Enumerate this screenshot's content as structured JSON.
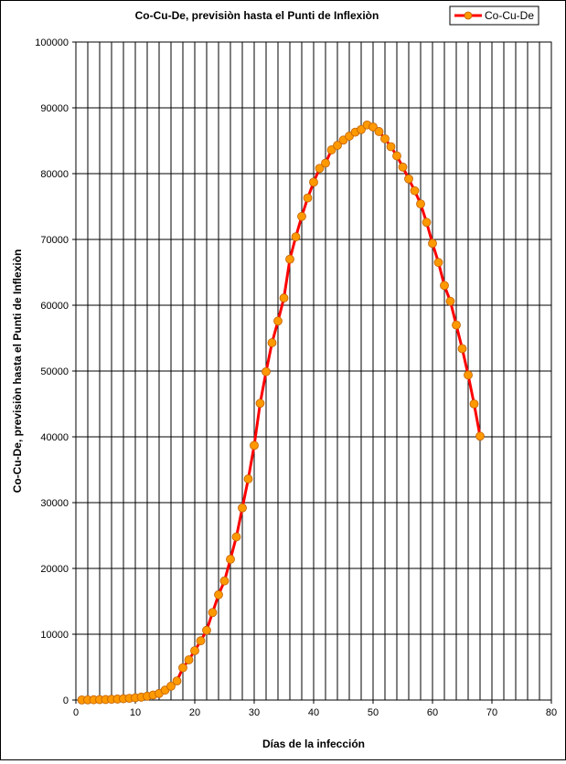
{
  "chart_data": {
    "type": "line",
    "title": "Co-Cu-De, previsiòn hasta el Punti de Inflexiòn",
    "xlabel": "Días de la infección",
    "ylabel": "Co-Cu-De, previsiòn hasta el Punti de Inflexiòn",
    "xlim": [
      0,
      80
    ],
    "ylim": [
      0,
      100000
    ],
    "x_ticks": [
      "0",
      "10",
      "20",
      "30",
      "40",
      "50",
      "60",
      "70",
      "80"
    ],
    "y_ticks": [
      "0",
      "10000",
      "20000",
      "30000",
      "40000",
      "50000",
      "60000",
      "70000",
      "80000",
      "90000",
      "100000"
    ],
    "grid": true,
    "legend_position": "top-right",
    "series": [
      {
        "name": "Co-Cu-De",
        "line_color": "#ff0000",
        "marker_color": "#ff9900",
        "x": [
          1,
          2,
          3,
          4,
          5,
          6,
          7,
          8,
          9,
          10,
          11,
          12,
          13,
          14,
          15,
          16,
          17,
          18,
          19,
          20,
          21,
          22,
          23,
          24,
          25,
          26,
          27,
          28,
          29,
          30,
          31,
          32,
          33,
          34,
          35,
          36,
          37,
          38,
          39,
          40,
          41,
          42,
          43,
          44,
          45,
          46,
          47,
          48,
          49,
          50,
          51,
          52,
          53,
          54,
          55,
          56,
          57,
          58,
          59,
          60,
          61,
          62,
          63,
          64,
          65,
          66,
          67,
          68
        ],
        "values": [
          20,
          30,
          40,
          60,
          80,
          110,
          150,
          200,
          260,
          340,
          440,
          580,
          760,
          1000,
          1500,
          2100,
          2900,
          4900,
          6100,
          7500,
          9000,
          10600,
          13300,
          16000,
          18100,
          21400,
          24800,
          29200,
          33600,
          38700,
          45100,
          49900,
          54300,
          57600,
          61100,
          67000,
          70400,
          73500,
          76300,
          78700,
          80800,
          81600,
          83600,
          84300,
          85100,
          85700,
          86300,
          86700,
          87400,
          87100,
          86400,
          85300,
          84100,
          82700,
          81000,
          79200,
          77400,
          75400,
          72600,
          69400,
          66500,
          63000,
          60600,
          57000,
          53400,
          49400,
          45000,
          40100
        ]
      }
    ]
  }
}
